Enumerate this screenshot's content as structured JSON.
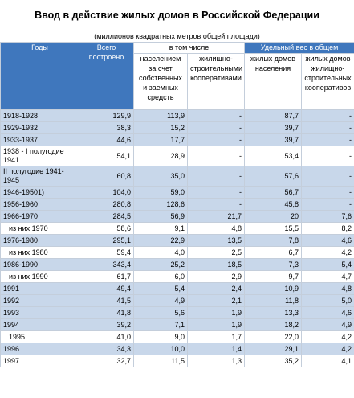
{
  "title": "Ввод в действие жилых домов в Российской Федерации",
  "subtitle": "(миллионов квадратных метров общей площади)",
  "headers": {
    "years": "Годы",
    "total": "Всего построено",
    "including": "в том числе",
    "population": "населением за счет собственных и заемных средств",
    "coops": "жилищно-строительными кооперативами",
    "share": "Удельный вес в общем",
    "share_population": "жилых домов населения",
    "share_coops": "жилых домов жилищно-строительных кооперативов"
  },
  "rows": [
    {
      "year": "1918-1928",
      "total": "129,9",
      "pop": "113,9",
      "coop": "-",
      "share_pop": "87,7",
      "share_coop": "-",
      "hl": true
    },
    {
      "year": "1929-1932",
      "total": "38,3",
      "pop": "15,2",
      "coop": "-",
      "share_pop": "39,7",
      "share_coop": "-",
      "hl": true
    },
    {
      "year": "1933-1937",
      "total": "44,6",
      "pop": "17,7",
      "coop": "-",
      "share_pop": "39,7",
      "share_coop": "-",
      "hl": true
    },
    {
      "year": "1938 - I полугодие 1941",
      "total": "54,1",
      "pop": "28,9",
      "coop": "-",
      "share_pop": "53,4",
      "share_coop": "-",
      "hl": false,
      "tall": true
    },
    {
      "year": "II полугодие 1941-1945",
      "total": "60,8",
      "pop": "35,0",
      "coop": "-",
      "share_pop": "57,6",
      "share_coop": "-",
      "hl": true,
      "tall": true
    },
    {
      "year": "1946-19501)",
      "total": "104,0",
      "pop": "59,0",
      "coop": "-",
      "share_pop": "56,7",
      "share_coop": "-",
      "hl": true
    },
    {
      "year": "1956-1960",
      "total": "280,8",
      "pop": "128,6",
      "coop": "-",
      "share_pop": "45,8",
      "share_coop": "-",
      "hl": true
    },
    {
      "year": "1966-1970",
      "total": "284,5",
      "pop": "56,9",
      "coop": "21,7",
      "share_pop": "20",
      "share_coop": "7,6",
      "hl": true
    },
    {
      "year": "из них 1970",
      "total": "58,6",
      "pop": "9,1",
      "coop": "4,8",
      "share_pop": "15,5",
      "share_coop": "8,2",
      "hl": false,
      "indent": true
    },
    {
      "year": "1976-1980",
      "total": "295,1",
      "pop": "22,9",
      "coop": "13,5",
      "share_pop": "7,8",
      "share_coop": "4,6",
      "hl": true
    },
    {
      "year": "из них 1980",
      "total": "59,4",
      "pop": "4,0",
      "coop": "2,5",
      "share_pop": "6,7",
      "share_coop": "4,2",
      "hl": false,
      "indent": true
    },
    {
      "year": "1986-1990",
      "total": "343,4",
      "pop": "25,2",
      "coop": "18,5",
      "share_pop": "7,3",
      "share_coop": "5,4",
      "hl": true
    },
    {
      "year": "из них 1990",
      "total": "61,7",
      "pop": "6,0",
      "coop": "2,9",
      "share_pop": "9,7",
      "share_coop": "4,7",
      "hl": false,
      "indent": true
    },
    {
      "year": "1991",
      "total": "49,4",
      "pop": "5,4",
      "coop": "2,4",
      "share_pop": "10,9",
      "share_coop": "4,8",
      "hl": true
    },
    {
      "year": "1992",
      "total": "41,5",
      "pop": "4,9",
      "coop": "2,1",
      "share_pop": "11,8",
      "share_coop": "5,0",
      "hl": true
    },
    {
      "year": "1993",
      "total": "41,8",
      "pop": "5,6",
      "coop": "1,9",
      "share_pop": "13,3",
      "share_coop": "4,6",
      "hl": true
    },
    {
      "year": "1994",
      "total": "39,2",
      "pop": "7,1",
      "coop": "1,9",
      "share_pop": "18,2",
      "share_coop": "4,9",
      "hl": true
    },
    {
      "year": "1995",
      "total": "41,0",
      "pop": "9,0",
      "coop": "1,7",
      "share_pop": "22,0",
      "share_coop": "4,2",
      "hl": false,
      "indent": true
    },
    {
      "year": "1996",
      "total": "34,3",
      "pop": "10,0",
      "coop": "1,4",
      "share_pop": "29,1",
      "share_coop": "4,2",
      "hl": true
    },
    {
      "year": "1997",
      "total": "32,7",
      "pop": "11,5",
      "coop": "1,3",
      "share_pop": "35,2",
      "share_coop": "4,1",
      "hl": false
    }
  ]
}
